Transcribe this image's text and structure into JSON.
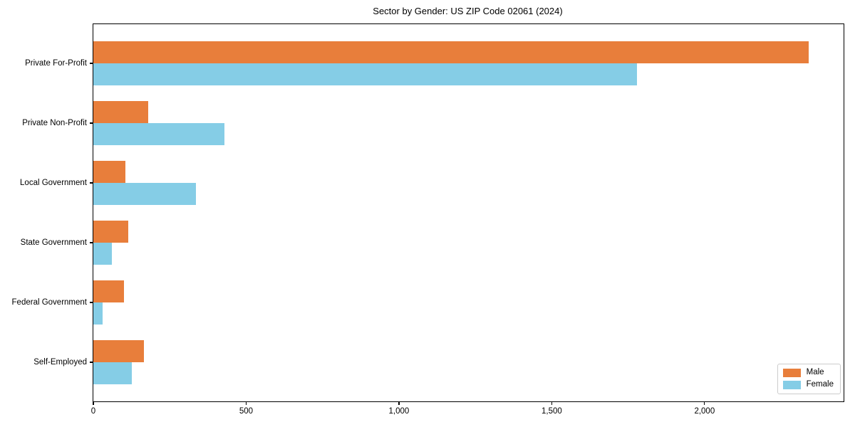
{
  "figure": {
    "background": "#ffffff"
  },
  "chart_data": {
    "type": "bar",
    "orientation": "horizontal",
    "title": "Sector by Gender: US ZIP Code 02061 (2024)",
    "xlabel": "",
    "ylabel": "",
    "grid": false,
    "legend_position": "lower right",
    "categories": [
      "Private For-Profit",
      "Private Non-Profit",
      "Local Government",
      "State Government",
      "Federal Government",
      "Self-Employed"
    ],
    "series": [
      {
        "name": "Male",
        "color": "#e87e3b",
        "values": [
          2340,
          180,
          105,
          115,
          100,
          165
        ]
      },
      {
        "name": "Female",
        "color": "#85cde6",
        "values": [
          1780,
          430,
          335,
          60,
          30,
          125
        ]
      }
    ],
    "xlim": [
      0,
      2455
    ],
    "x_ticks": [
      {
        "value": 0,
        "label": "0"
      },
      {
        "value": 500,
        "label": "500"
      },
      {
        "value": 1000,
        "label": "1,000"
      },
      {
        "value": 1500,
        "label": "1,500"
      },
      {
        "value": 2000,
        "label": "2,000"
      }
    ]
  }
}
